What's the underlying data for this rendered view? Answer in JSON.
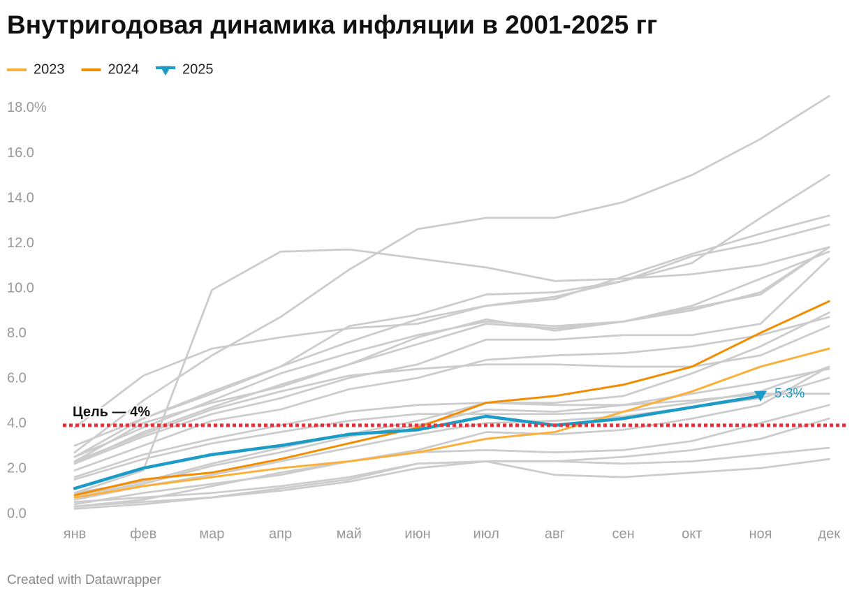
{
  "chart_data": {
    "type": "line",
    "title": "Внутригодовая динамика инфляции в 2001-2025 гг",
    "footer": "Created with Datawrapper",
    "categories": [
      "янв",
      "фев",
      "мар",
      "апр",
      "май",
      "июн",
      "июл",
      "авг",
      "сен",
      "окт",
      "ноя",
      "дек"
    ],
    "ylim": [
      0,
      18.6
    ],
    "yticks": [
      {
        "value": 0,
        "label": "0.0"
      },
      {
        "value": 2,
        "label": "2.0"
      },
      {
        "value": 4,
        "label": "4.0"
      },
      {
        "value": 6,
        "label": "6.0"
      },
      {
        "value": 8,
        "label": "8.0"
      },
      {
        "value": 10,
        "label": "10.0"
      },
      {
        "value": 12,
        "label": "12.0"
      },
      {
        "value": 14,
        "label": "14.0"
      },
      {
        "value": 16,
        "label": "16.0"
      },
      {
        "value": 18,
        "label": "18.0%"
      }
    ],
    "grid": false,
    "legend": "top-left",
    "target": {
      "value": 4,
      "label": "Цель — 4%",
      "color": "#e8333a"
    },
    "series": [
      {
        "color": "#cccccc",
        "values": [
          2.8,
          5.1,
          7.1,
          8.8,
          10.9,
          12.7,
          13.2,
          13.2,
          13.9,
          15.1,
          16.7,
          18.6
        ]
      },
      {
        "color": "#cccccc",
        "values": [
          3.1,
          4.3,
          5.4,
          6.6,
          8.4,
          8.9,
          9.8,
          9.9,
          10.4,
          11.2,
          13.2,
          15.1
        ]
      },
      {
        "color": "#cccccc",
        "values": [
          1.0,
          2.0,
          10.0,
          11.7,
          11.8,
          11.4,
          11.0,
          10.4,
          10.5,
          10.7,
          11.1,
          11.9
        ]
      },
      {
        "color": "#cccccc",
        "values": [
          3.9,
          6.2,
          7.4,
          7.9,
          8.3,
          8.5,
          9.3,
          9.7,
          10.4,
          11.5,
          12.1,
          12.9
        ]
      },
      {
        "color": "#cccccc",
        "values": [
          0.7,
          1.3,
          1.8,
          2.4,
          3.0,
          3.6,
          4.1,
          4.2,
          4.4,
          4.8,
          5.2,
          6.1
        ]
      },
      {
        "color": "#cccccc",
        "values": [
          0.4,
          0.7,
          1.3,
          1.9,
          2.4,
          2.9,
          3.7,
          3.6,
          3.8,
          4.3,
          4.9,
          6.6
        ]
      },
      {
        "color": "#cccccc",
        "values": [
          0.5,
          1.0,
          1.4,
          1.8,
          2.4,
          2.8,
          2.9,
          2.8,
          2.9,
          3.3,
          4.1,
          4.9
        ]
      },
      {
        "color": "#cccccc",
        "values": [
          0.3,
          0.5,
          0.8,
          1.2,
          1.6,
          2.3,
          2.4,
          2.4,
          2.6,
          2.9,
          3.4,
          4.3
        ]
      },
      {
        "color": "#cccccc",
        "values": [
          0.4,
          0.6,
          0.8,
          1.1,
          1.5,
          2.1,
          2.4,
          2.4,
          2.3,
          2.4,
          2.7,
          3.0
        ]
      },
      {
        "color": "#cccccc",
        "values": [
          0.6,
          0.8,
          1.0,
          1.3,
          1.7,
          2.3,
          2.4,
          1.8,
          1.7,
          1.9,
          2.1,
          2.5
        ]
      },
      {
        "color": "#cccccc",
        "values": [
          1.7,
          2.7,
          3.4,
          4.0,
          4.6,
          4.9,
          5.0,
          4.9,
          4.9,
          5.1,
          5.4,
          5.4
        ]
      },
      {
        "color": "#cccccc",
        "values": [
          2.4,
          3.6,
          4.7,
          5.5,
          6.2,
          6.5,
          6.7,
          6.7,
          6.6,
          6.6,
          7.1,
          8.4
        ]
      },
      {
        "color": "#cccccc",
        "values": [
          2.4,
          4.1,
          5.0,
          5.7,
          6.7,
          7.6,
          8.5,
          8.3,
          8.6,
          9.2,
          9.8,
          11.9
        ]
      },
      {
        "color": "#cccccc",
        "values": [
          2.6,
          4.3,
          5.5,
          6.6,
          7.7,
          8.7,
          9.3,
          9.6,
          10.6,
          11.6,
          12.5,
          13.3
        ]
      },
      {
        "color": "#cccccc",
        "values": [
          2.3,
          3.7,
          4.8,
          5.8,
          6.7,
          7.9,
          8.7,
          8.2,
          8.6,
          9.1,
          9.9,
          11.9
        ]
      },
      {
        "color": "#cccccc",
        "values": [
          2.0,
          3.1,
          4.2,
          4.7,
          5.6,
          6.1,
          6.9,
          7.1,
          7.2,
          7.5,
          8.0,
          8.8
        ]
      },
      {
        "color": "#cccccc",
        "values": [
          2.3,
          3.5,
          4.5,
          5.2,
          6.1,
          6.7,
          7.8,
          7.8,
          8.0,
          8.0,
          8.5,
          11.4
        ]
      },
      {
        "color": "#cccccc",
        "values": [
          0.9,
          1.4,
          2.2,
          2.8,
          3.5,
          4.0,
          4.7,
          4.6,
          4.9,
          5.4,
          5.9,
          6.5
        ]
      },
      {
        "color": "#cccccc",
        "values": [
          1.0,
          1.5,
          2.3,
          3.0,
          3.6,
          4.2,
          5.0,
          5.0,
          5.3,
          6.3,
          7.5,
          9.0
        ]
      },
      {
        "color": "#cccccc",
        "values": [
          1.6,
          2.5,
          3.2,
          3.7,
          4.2,
          4.5,
          4.5,
          4.5,
          4.6,
          5.0,
          5.5,
          6.6
        ]
      },
      {
        "color": "#cccccc",
        "values": [
          2.6,
          3.9,
          5.1,
          6.3,
          7.2,
          8.0,
          8.6,
          8.4,
          8.6,
          9.3,
          10.5,
          11.7
        ]
      },
      {
        "name": "2023",
        "color": "#fbb03b",
        "values": [
          0.8,
          1.3,
          1.7,
          2.1,
          2.4,
          2.8,
          3.4,
          3.7,
          4.6,
          5.5,
          6.6,
          7.4
        ]
      },
      {
        "name": "2024",
        "color": "#f28c00",
        "values": [
          0.9,
          1.6,
          1.9,
          2.5,
          3.2,
          3.9,
          5.0,
          5.3,
          5.8,
          6.6,
          8.1,
          9.5
        ]
      },
      {
        "name": "2025",
        "color": "#1d9bc7",
        "marker": "triangle",
        "values": [
          1.2,
          2.1,
          2.7,
          3.1,
          3.6,
          3.8,
          4.4,
          4.0,
          4.3,
          4.8,
          5.3,
          null
        ],
        "value_labels": [
          null,
          null,
          null,
          null,
          null,
          null,
          null,
          null,
          null,
          null,
          "5.3%",
          null
        ]
      }
    ]
  }
}
